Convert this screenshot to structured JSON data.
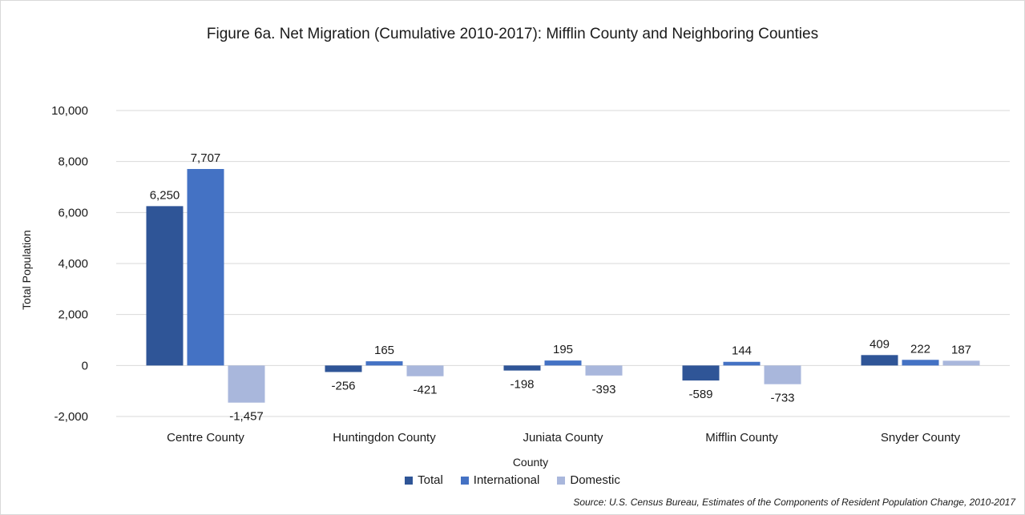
{
  "chart_data": {
    "type": "bar",
    "title": "Figure 6a. Net Migration (Cumulative 2010-2017): Mifflin County and Neighboring Counties",
    "xlabel": "County",
    "ylabel": "Total Population",
    "ylim": [
      -2000,
      10000
    ],
    "yticks": [
      -2000,
      0,
      2000,
      4000,
      6000,
      8000,
      10000
    ],
    "ytick_labels": [
      "-2,000",
      "0",
      "2,000",
      "4,000",
      "6,000",
      "8,000",
      "10,000"
    ],
    "grid": true,
    "legend_position": "bottom",
    "categories": [
      "Centre County",
      "Huntingdon County",
      "Juniata County",
      "Mifflin County",
      "Snyder County"
    ],
    "series": [
      {
        "name": "Total",
        "color": "#2f5597",
        "values": [
          6250,
          -256,
          -198,
          -589,
          409
        ],
        "labels": [
          "6,250",
          "-256",
          "-198",
          "-589",
          "409"
        ]
      },
      {
        "name": "International",
        "color": "#4472c4",
        "values": [
          7707,
          165,
          195,
          144,
          222
        ],
        "labels": [
          "7,707",
          "165",
          "195",
          "144",
          "222"
        ]
      },
      {
        "name": "Domestic",
        "color": "#a9b7dc",
        "values": [
          -1457,
          -421,
          -393,
          -733,
          187
        ],
        "labels": [
          "-1,457",
          "-421",
          "-393",
          "-733",
          "187"
        ]
      }
    ],
    "source": "Source: U.S. Census Bureau, Estimates of the Components of Resident Population Change, 2010-2017"
  }
}
